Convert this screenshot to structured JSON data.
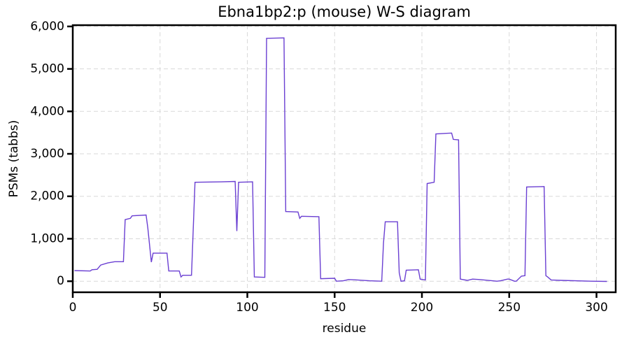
{
  "chart_data": {
    "type": "line",
    "title": "Ebna1bp2:p (mouse) W-S diagram",
    "x_label": "residue",
    "y_label": "PSMs (tabbs)",
    "color": "#6a3fd2",
    "grid": true,
    "xlim": [
      0,
      311
    ],
    "ylim": [
      -260,
      6030
    ],
    "xticks": [
      0,
      50,
      100,
      150,
      200,
      250,
      300
    ],
    "yticks": [
      0,
      {
        "value": 1000,
        "label": "1,000"
      },
      {
        "value": 2000,
        "label": "2,000"
      },
      {
        "value": 3000,
        "label": "3,000"
      },
      {
        "value": 4000,
        "label": "4,000"
      },
      {
        "value": 5000,
        "label": "5,000"
      },
      {
        "value": 6000,
        "label": "6,000"
      }
    ],
    "x": [
      1,
      10,
      11,
      14,
      16,
      20,
      24,
      29,
      30,
      33,
      34,
      42,
      43,
      45,
      46,
      54,
      55,
      61,
      62,
      63,
      68,
      70,
      85,
      93,
      94,
      95,
      103,
      104,
      110,
      111,
      121,
      122,
      129,
      130,
      131,
      141,
      142,
      150,
      151,
      155,
      158,
      163,
      170,
      177,
      178,
      179,
      186,
      187,
      188,
      190,
      191,
      198,
      199,
      202,
      203,
      207,
      208,
      217,
      218,
      221,
      222,
      226,
      229,
      233,
      243,
      245,
      249,
      250,
      253,
      254,
      257,
      259,
      260,
      270,
      271,
      272,
      274,
      280,
      297,
      306
    ],
    "values": [
      250,
      240,
      270,
      280,
      380,
      430,
      460,
      460,
      1450,
      1480,
      1540,
      1560,
      1250,
      450,
      660,
      660,
      240,
      240,
      100,
      140,
      140,
      2330,
      2340,
      2350,
      1180,
      2330,
      2340,
      100,
      90,
      5720,
      5730,
      1640,
      1630,
      1480,
      1530,
      1520,
      60,
      70,
      0,
      10,
      40,
      30,
      10,
      0,
      900,
      1400,
      1400,
      200,
      0,
      10,
      260,
      270,
      50,
      30,
      2300,
      2330,
      3470,
      3490,
      3340,
      3330,
      50,
      20,
      50,
      40,
      0,
      10,
      50,
      50,
      0,
      0,
      120,
      130,
      2220,
      2230,
      130,
      100,
      30,
      20,
      0,
      -5
    ]
  }
}
